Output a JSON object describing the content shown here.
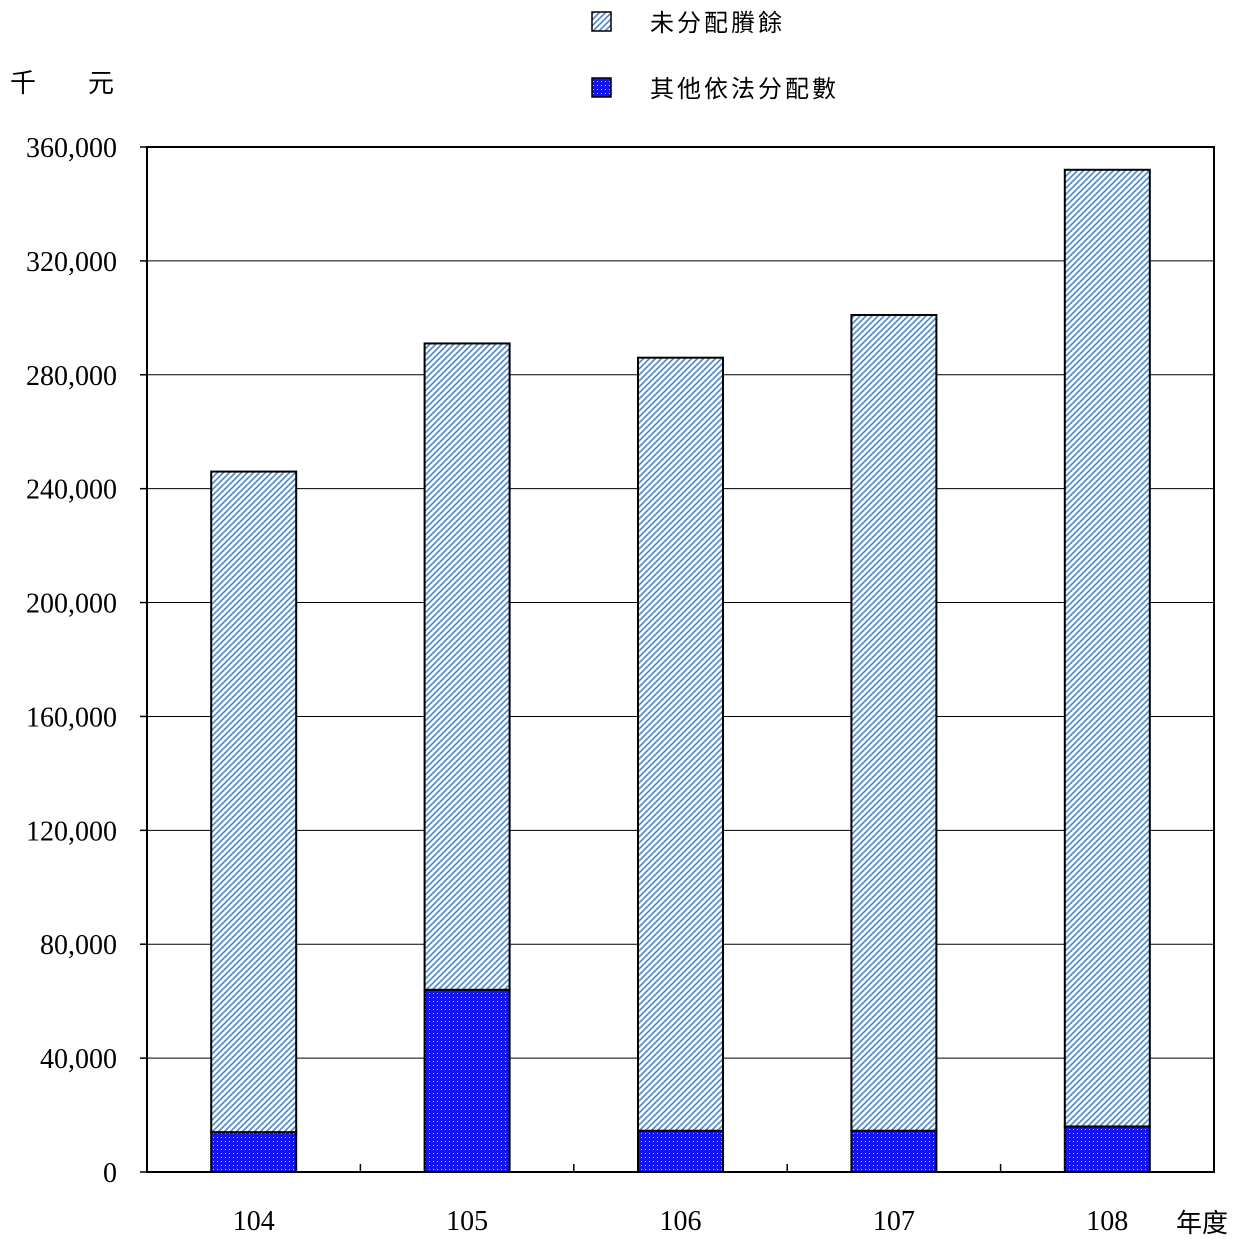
{
  "chart_data": {
    "type": "bar",
    "stacked": true,
    "categories": [
      "104",
      "105",
      "106",
      "107",
      "108"
    ],
    "series": [
      {
        "name": "其他依法分配數",
        "values": [
          14000,
          64000,
          14500,
          14500,
          16000
        ],
        "color": "#1a1aff",
        "pattern": "dotted"
      },
      {
        "name": "未分配賸餘",
        "values": [
          232000,
          227000,
          271500,
          286500,
          336000
        ],
        "color": "#5b9bd5",
        "pattern": "diagonal-hatch"
      }
    ],
    "totals": [
      246000,
      291000,
      286000,
      301000,
      352000
    ],
    "ylim": [
      0,
      360000
    ],
    "yticks": [
      0,
      40000,
      80000,
      120000,
      160000,
      200000,
      240000,
      280000,
      320000,
      360000
    ],
    "ytick_labels": [
      "0",
      "40,000",
      "80,000",
      "120,000",
      "160,000",
      "200,000",
      "240,000",
      "280,000",
      "320,000",
      "360,000"
    ],
    "ylabel": "千　　元",
    "xlabel": "年度",
    "grid": true,
    "legend": {
      "placement": "top-center",
      "entries": [
        "未分配賸餘",
        "其他依法分配數"
      ]
    }
  }
}
